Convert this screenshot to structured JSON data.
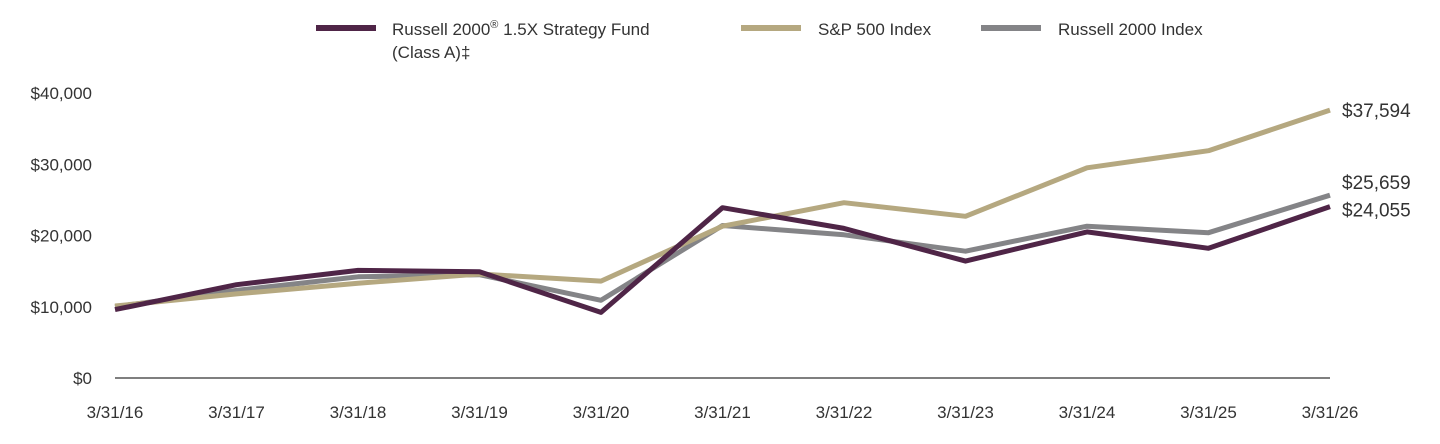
{
  "chart_data": {
    "type": "line",
    "title": "",
    "xlabel": "",
    "ylabel": "",
    "x": [
      "3/31/16",
      "3/31/17",
      "3/31/18",
      "3/31/19",
      "3/31/20",
      "3/31/21",
      "3/31/22",
      "3/31/23",
      "3/31/24",
      "3/31/25",
      "3/31/26"
    ],
    "ylim": [
      0,
      40000
    ],
    "y_ticks": [
      {
        "value": 0,
        "label": "$0"
      },
      {
        "value": 10000,
        "label": "$10,000"
      },
      {
        "value": 20000,
        "label": "$20,000"
      },
      {
        "value": 30000,
        "label": "$30,000"
      },
      {
        "value": 40000,
        "label": "$40,000"
      }
    ],
    "grid": false,
    "legend_position": "top",
    "series": [
      {
        "name_line1": "Russell 2000",
        "name_sup": "®",
        "name_line1_rest": " 1.5X Strategy Fund",
        "name_line2": "(Class A)‡",
        "color": "#4f2547",
        "values": [
          9600,
          13100,
          15100,
          14900,
          9200,
          23900,
          21000,
          16400,
          20500,
          18200,
          24055
        ],
        "end_label": "$24,055"
      },
      {
        "name": "S&P 500 Index",
        "color": "#b5a880",
        "values": [
          10100,
          11800,
          13300,
          14600,
          13600,
          21300,
          24600,
          22700,
          29500,
          31900,
          37594
        ],
        "end_label": "$37,594"
      },
      {
        "name": "Russell 2000 Index",
        "color": "#848487",
        "values": [
          10000,
          12300,
          14200,
          14500,
          10900,
          21400,
          20100,
          17800,
          21300,
          20400,
          25659
        ],
        "end_label": "$25,659"
      }
    ]
  }
}
